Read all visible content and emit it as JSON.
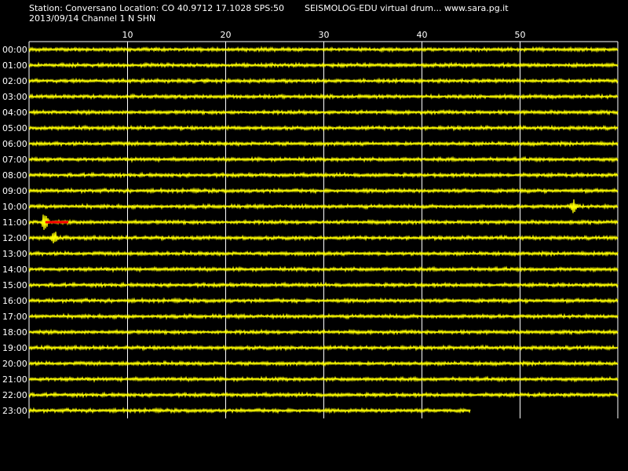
{
  "header": {
    "station_line": "Station: Conversano Location: CO 40.9712 17.1028 SPS:50",
    "app_line": "SEISMOLOG-EDU virtual drum... www.sara.pg.it",
    "date_line": "2013/09/14  Channel 1 N SHN"
  },
  "colors": {
    "background": "#000000",
    "trace": "#ffff00",
    "event_marker": "#ff0000",
    "grid": "#ffffff",
    "text": "#ffffff"
  },
  "chart_data": {
    "type": "line",
    "title": "",
    "xlabel": "",
    "ylabel": "",
    "x_unit_ticks": [
      10,
      20,
      30,
      40,
      50
    ],
    "xlim": [
      0,
      60
    ],
    "grid": true,
    "rows": [
      {
        "label": "00:00",
        "minutes_recorded": 60
      },
      {
        "label": "01:00",
        "minutes_recorded": 60
      },
      {
        "label": "02:00",
        "minutes_recorded": 60
      },
      {
        "label": "03:00",
        "minutes_recorded": 60
      },
      {
        "label": "04:00",
        "minutes_recorded": 60
      },
      {
        "label": "05:00",
        "minutes_recorded": 60
      },
      {
        "label": "06:00",
        "minutes_recorded": 60
      },
      {
        "label": "07:00",
        "minutes_recorded": 60
      },
      {
        "label": "08:00",
        "minutes_recorded": 60
      },
      {
        "label": "09:00",
        "minutes_recorded": 60
      },
      {
        "label": "10:00",
        "minutes_recorded": 60,
        "spike_minute": 55.5
      },
      {
        "label": "11:00",
        "minutes_recorded": 60,
        "event_start_minute": 1.5,
        "event_end_minute": 4
      },
      {
        "label": "12:00",
        "minutes_recorded": 60,
        "spike_minute": 2.6
      },
      {
        "label": "13:00",
        "minutes_recorded": 60
      },
      {
        "label": "14:00",
        "minutes_recorded": 60
      },
      {
        "label": "15:00",
        "minutes_recorded": 60
      },
      {
        "label": "16:00",
        "minutes_recorded": 60
      },
      {
        "label": "17:00",
        "minutes_recorded": 60
      },
      {
        "label": "18:00",
        "minutes_recorded": 60
      },
      {
        "label": "19:00",
        "minutes_recorded": 60
      },
      {
        "label": "20:00",
        "minutes_recorded": 60
      },
      {
        "label": "21:00",
        "minutes_recorded": 60
      },
      {
        "label": "22:00",
        "minutes_recorded": 60
      },
      {
        "label": "23:00",
        "minutes_recorded": 45
      }
    ]
  }
}
